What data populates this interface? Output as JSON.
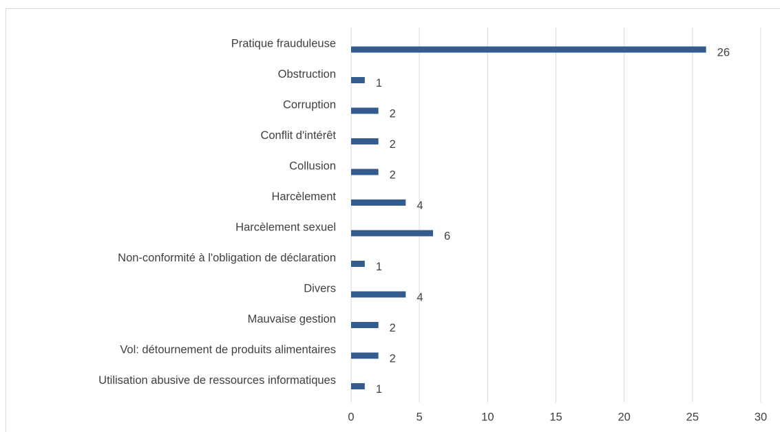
{
  "chart_data": {
    "type": "barh",
    "categories": [
      "Pratique frauduleuse",
      "Obstruction",
      "Corruption",
      "Conflit d'intérêt",
      "Collusion",
      "Harcèlement",
      "Harcèlement sexuel",
      "Non-conformité à l'obligation de déclaration",
      "Divers",
      "Mauvaise gestion",
      "Vol: détournement de produits alimentaires",
      "Utilisation abusive de ressources informatiques"
    ],
    "values": [
      26,
      1,
      2,
      2,
      2,
      4,
      6,
      1,
      4,
      2,
      2,
      1
    ],
    "color": "#335b8e",
    "xlim": [
      0,
      30
    ],
    "xticks": [
      0,
      5,
      10,
      15,
      20,
      25,
      30
    ],
    "grid": true
  }
}
